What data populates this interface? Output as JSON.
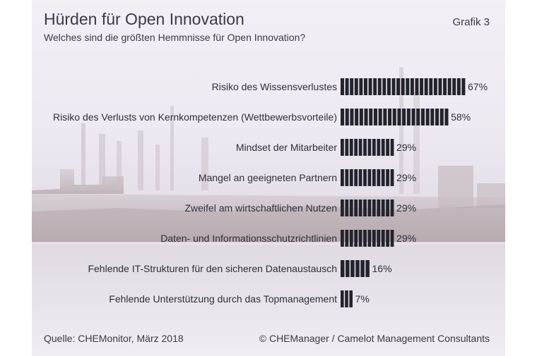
{
  "header": {
    "title": "Hürden für Open Innovation",
    "subtitle": "Welches sind die größten Hemmnisse für Open Innovation?",
    "badge": "Grafik 3"
  },
  "footer": {
    "source": "Quelle: CHEMonitor, März 2018",
    "copyright": "© CHEManager / Camelot Management Consultants"
  },
  "colors": {
    "bar": "#23232d",
    "text": "#2e2e38"
  },
  "chart_data": {
    "type": "bar",
    "orientation": "horizontal",
    "categories": [
      "Risiko des Wissensverlustes",
      "Risiko des Verlusts von Kernkompetenzen (Wettbewerbsvorteile)",
      "Mindset der Mitarbeiter",
      "Mangel an geeigneten Partnern",
      "Zweifel am wirtschaftlichen Nutzen",
      "Daten- und Informationsschutzrichtlinien",
      "Fehlende IT-Strukturen für den sicheren Datenaustausch",
      "Fehlende Unterstützung durch das Topmanagement"
    ],
    "values": [
      67,
      58,
      29,
      29,
      29,
      29,
      16,
      7
    ],
    "value_labels": [
      "67%",
      "58%",
      "29%",
      "29%",
      "29%",
      "29%",
      "16%",
      "7%"
    ],
    "unit": "%",
    "xlim": [
      0,
      67
    ],
    "grid": false,
    "legend": "none"
  }
}
